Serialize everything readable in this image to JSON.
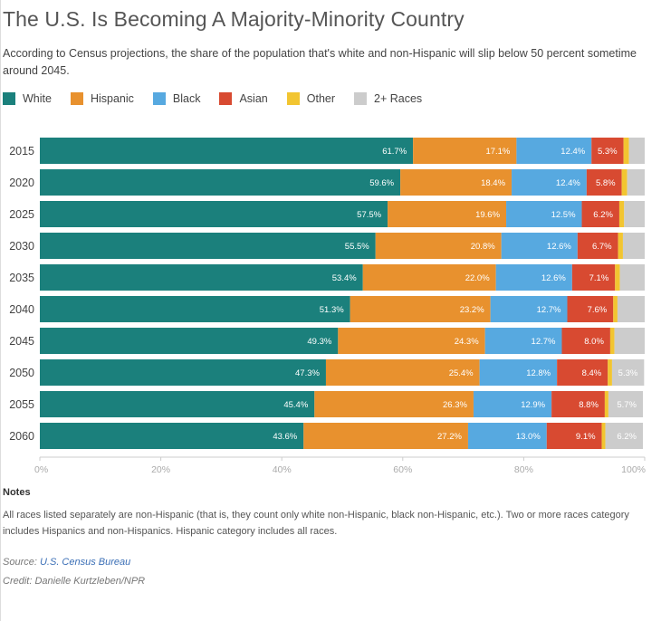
{
  "title": "The U.S. Is Becoming A Majority-Minority Country",
  "subtitle": "According to Census projections, the share of the population that's white and non-Hispanic will slip below 50 percent sometime around 2045.",
  "notes": {
    "heading": "Notes",
    "body": "All races listed separately are non-Hispanic (that is, they count only white non-Hispanic, black non-Hispanic, etc.). Two or more races category includes Hispanics and non-Hispanics. Hispanic category includes all races."
  },
  "source": {
    "label": "Source:",
    "link_text": "U.S. Census Bureau"
  },
  "credit": "Credit: Danielle Kurtzleben/NPR",
  "colors": {
    "white": "#1b807c",
    "hispanic": "#e8912e",
    "black": "#57a9e0",
    "asian": "#d84a31",
    "other": "#f2c531",
    "two_plus": "#cccccc"
  },
  "chart_data": {
    "type": "bar",
    "orientation": "horizontal",
    "stacked": true,
    "categories": [
      "2015",
      "2020",
      "2025",
      "2030",
      "2035",
      "2040",
      "2045",
      "2050",
      "2055",
      "2060"
    ],
    "series": [
      {
        "name": "White",
        "color": "#1b807c",
        "values": [
          61.7,
          59.6,
          57.5,
          55.5,
          53.4,
          51.3,
          49.3,
          47.3,
          45.4,
          43.6
        ]
      },
      {
        "name": "Hispanic",
        "color": "#e8912e",
        "values": [
          17.1,
          18.4,
          19.6,
          20.8,
          22.0,
          23.2,
          24.3,
          25.4,
          26.3,
          27.2
        ]
      },
      {
        "name": "Black",
        "color": "#57a9e0",
        "values": [
          12.4,
          12.4,
          12.5,
          12.6,
          12.6,
          12.7,
          12.7,
          12.8,
          12.9,
          13.0
        ]
      },
      {
        "name": "Asian",
        "color": "#d84a31",
        "values": [
          5.3,
          5.8,
          6.2,
          6.7,
          7.1,
          7.6,
          8.0,
          8.4,
          8.8,
          9.1
        ]
      },
      {
        "name": "Other",
        "color": "#f2c531",
        "values": [
          0.9,
          0.9,
          0.8,
          0.8,
          0.8,
          0.7,
          0.7,
          0.7,
          0.6,
          0.6
        ]
      },
      {
        "name": "2+ Races",
        "color": "#cccccc",
        "values": [
          2.6,
          2.9,
          3.4,
          3.6,
          4.1,
          4.5,
          5.0,
          5.3,
          5.7,
          6.2
        ]
      }
    ],
    "data_labels": {
      "White": [
        true,
        true,
        true,
        true,
        true,
        true,
        true,
        true,
        true,
        true
      ],
      "Hispanic": [
        true,
        true,
        true,
        true,
        true,
        true,
        true,
        true,
        true,
        true
      ],
      "Black": [
        true,
        true,
        true,
        true,
        true,
        true,
        true,
        true,
        true,
        true
      ],
      "Asian": [
        true,
        true,
        true,
        true,
        true,
        true,
        true,
        true,
        true,
        true
      ],
      "Other": [
        false,
        false,
        false,
        false,
        false,
        false,
        false,
        false,
        false,
        false
      ],
      "2+ Races": [
        false,
        false,
        false,
        false,
        false,
        false,
        false,
        true,
        true,
        true
      ]
    },
    "x_ticks": [
      "0%",
      "20%",
      "40%",
      "60%",
      "80%",
      "100%"
    ],
    "xlim": [
      0,
      100
    ],
    "xlabel": "",
    "ylabel": "",
    "grid": false,
    "legend": "top"
  }
}
